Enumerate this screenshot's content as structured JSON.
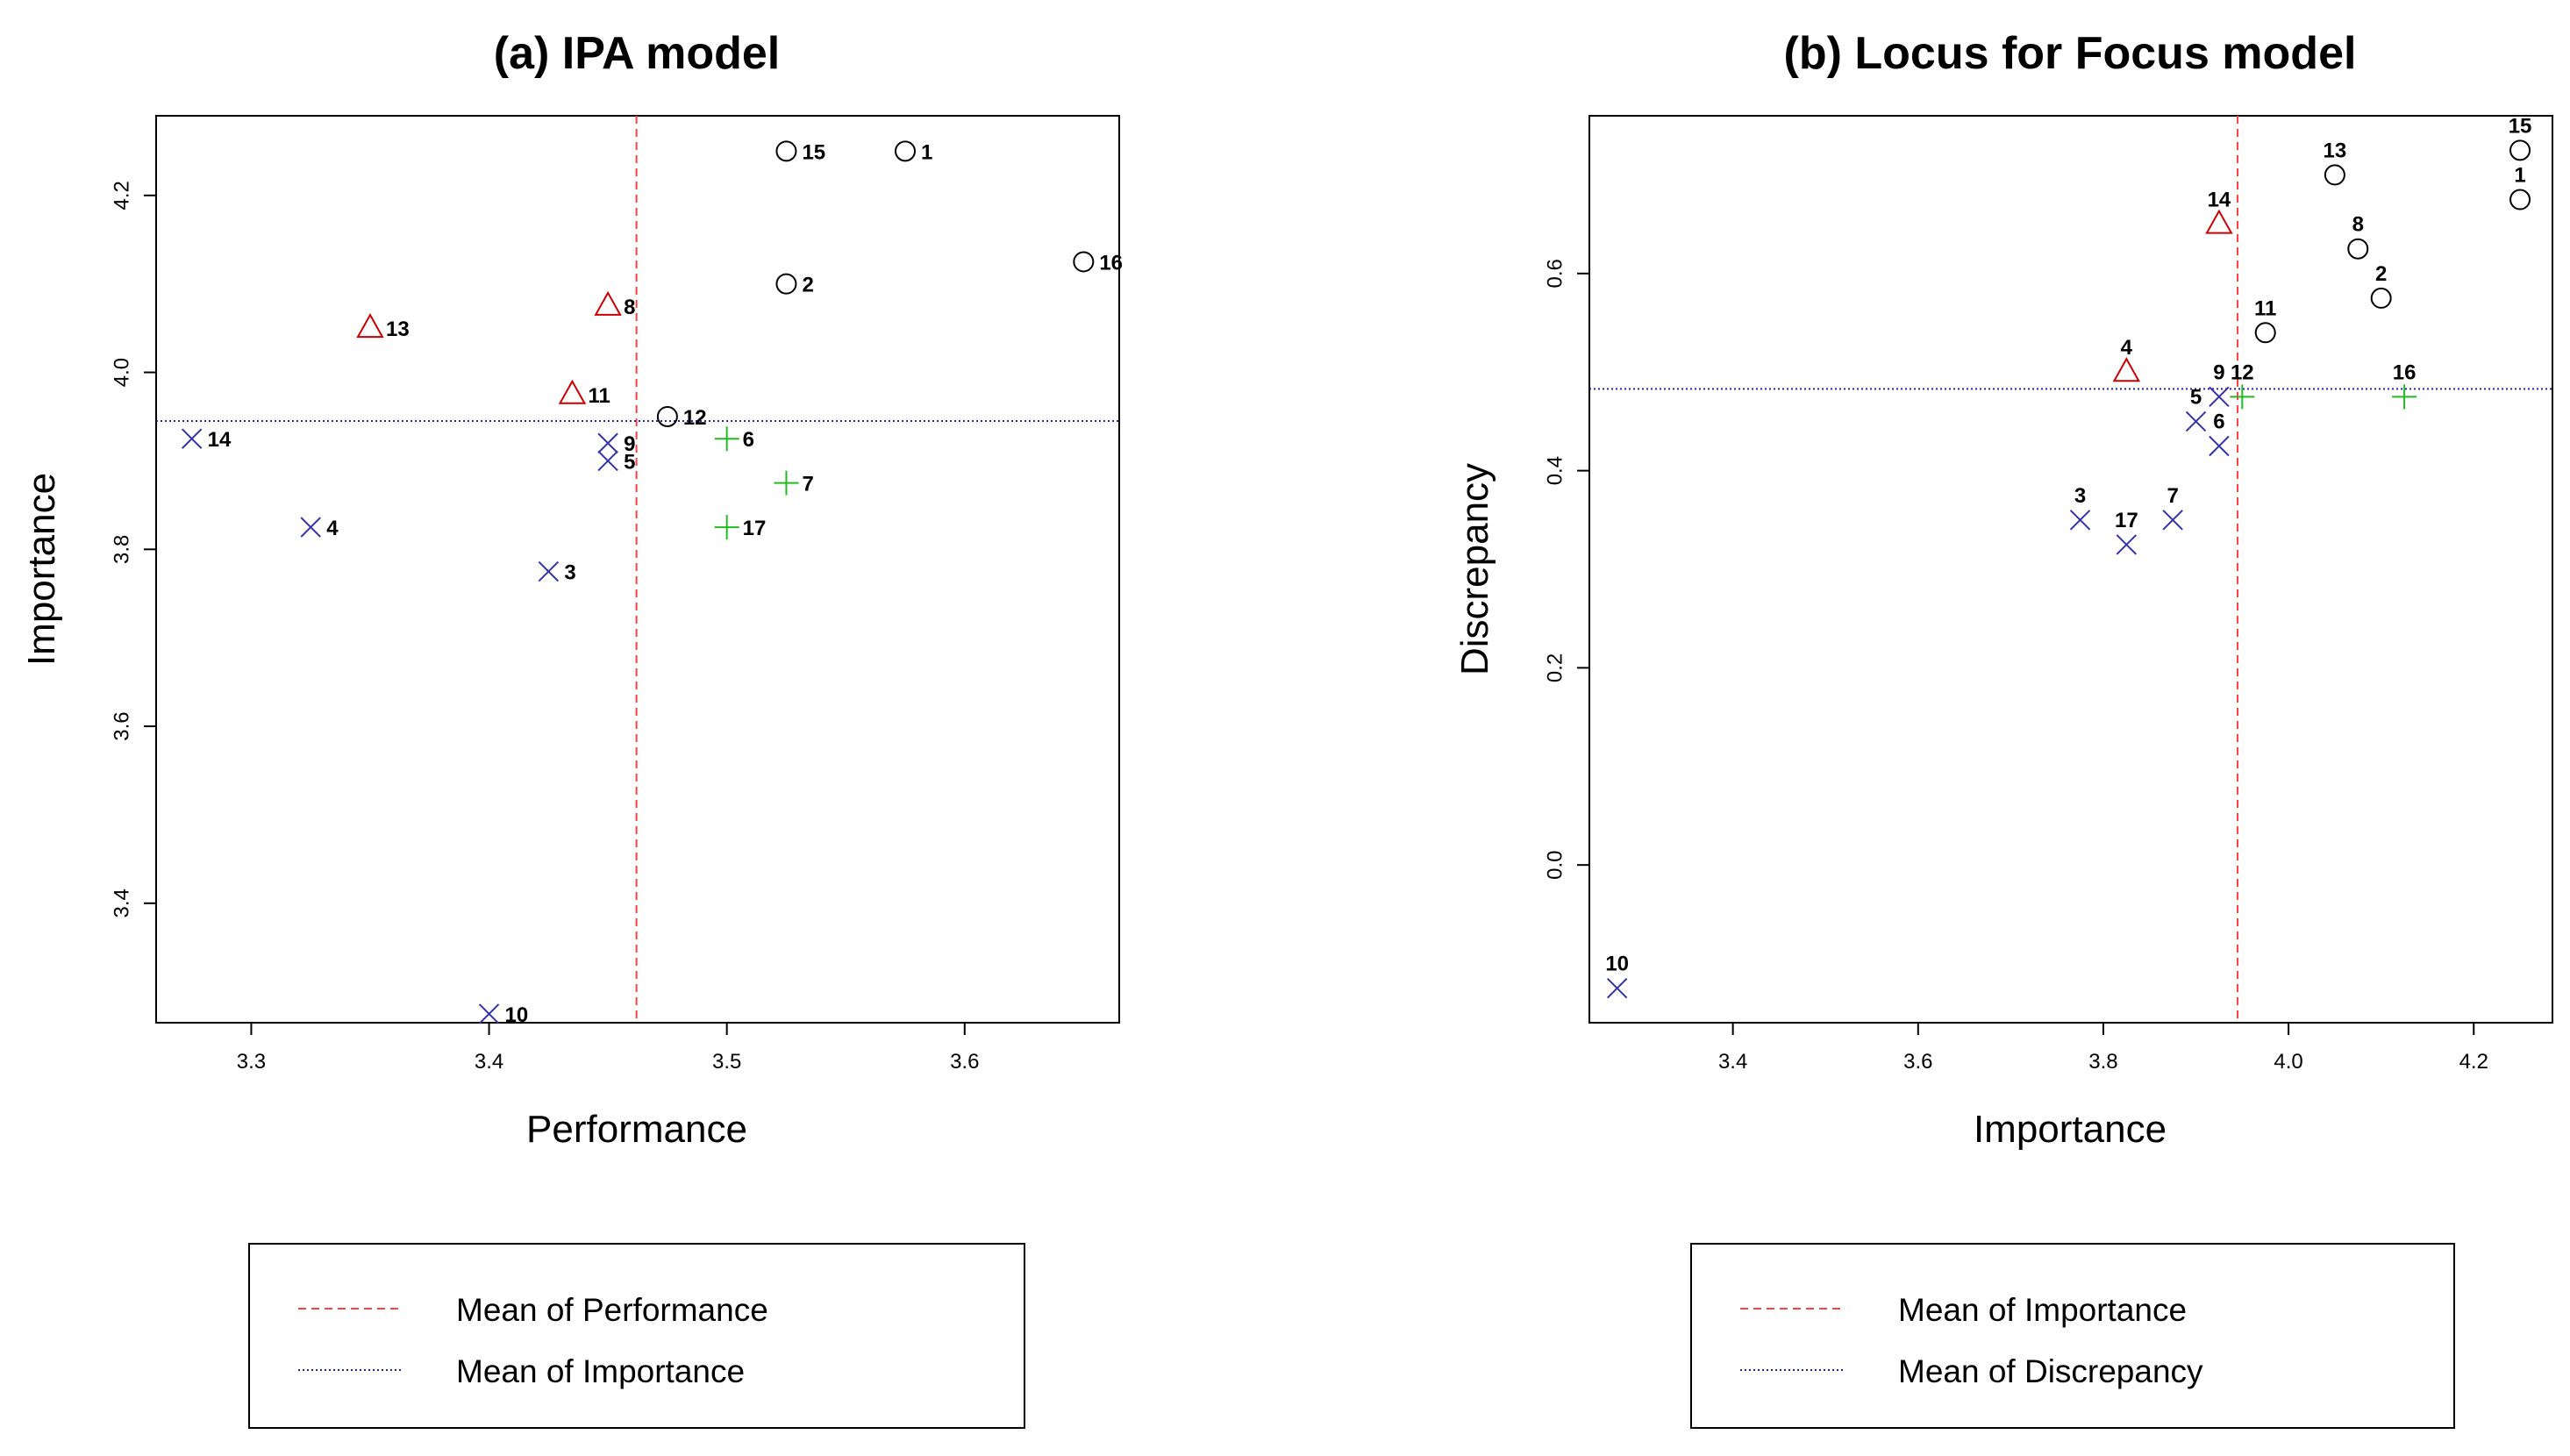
{
  "colors": {
    "high": "#000000",
    "mid": "#cc0000",
    "low": "#3333aa",
    "plus": "#22bb22",
    "mean_x": "#ff4040",
    "mean_y": "#2222aa"
  },
  "chart_data": [
    {
      "type": "scatter",
      "title": "(a) IPA model",
      "xlabel": "Performance",
      "ylabel": "Importance",
      "xlim": [
        3.26,
        3.665
      ],
      "ylim": [
        3.265,
        4.29
      ],
      "xticks": [
        3.3,
        3.4,
        3.5,
        3.6
      ],
      "yticks": [
        3.4,
        3.6,
        3.8,
        4.0,
        4.2
      ],
      "mean_x": 3.462,
      "mean_y": 3.945,
      "legend": [
        "Mean of Performance",
        "Mean of Importance"
      ],
      "points": [
        {
          "label": "1",
          "x": 3.575,
          "y": 4.25,
          "shape": "circle"
        },
        {
          "label": "2",
          "x": 3.525,
          "y": 4.1,
          "shape": "circle"
        },
        {
          "label": "3",
          "x": 3.425,
          "y": 3.775,
          "shape": "x"
        },
        {
          "label": "4",
          "x": 3.325,
          "y": 3.825,
          "shape": "x"
        },
        {
          "label": "5",
          "x": 3.45,
          "y": 3.9,
          "shape": "x"
        },
        {
          "label": "6",
          "x": 3.5,
          "y": 3.925,
          "shape": "plus"
        },
        {
          "label": "7",
          "x": 3.525,
          "y": 3.875,
          "shape": "plus"
        },
        {
          "label": "8",
          "x": 3.45,
          "y": 4.075,
          "shape": "triangle"
        },
        {
          "label": "9",
          "x": 3.45,
          "y": 3.92,
          "shape": "x"
        },
        {
          "label": "10",
          "x": 3.4,
          "y": 3.275,
          "shape": "x"
        },
        {
          "label": "11",
          "x": 3.435,
          "y": 3.975,
          "shape": "triangle"
        },
        {
          "label": "12",
          "x": 3.475,
          "y": 3.95,
          "shape": "circle"
        },
        {
          "label": "13",
          "x": 3.35,
          "y": 4.05,
          "shape": "triangle"
        },
        {
          "label": "14",
          "x": 3.275,
          "y": 3.925,
          "shape": "x"
        },
        {
          "label": "15",
          "x": 3.525,
          "y": 4.25,
          "shape": "circle"
        },
        {
          "label": "16",
          "x": 3.65,
          "y": 4.125,
          "shape": "circle"
        },
        {
          "label": "17",
          "x": 3.5,
          "y": 3.825,
          "shape": "plus"
        }
      ]
    },
    {
      "type": "scatter",
      "title": "(b) Locus for Focus model",
      "xlabel": "Importance",
      "ylabel": "Discrepancy",
      "xlim": [
        3.245,
        4.285
      ],
      "ylim": [
        -0.16,
        0.76
      ],
      "xticks": [
        3.4,
        3.6,
        3.8,
        4.0,
        4.2
      ],
      "yticks": [
        0.0,
        0.2,
        0.4,
        0.6
      ],
      "mean_x": 3.945,
      "mean_y": 0.483,
      "legend": [
        "Mean of Importance",
        "Mean of Discrepancy"
      ],
      "points": [
        {
          "label": "1",
          "x": 4.25,
          "y": 0.675,
          "shape": "circle"
        },
        {
          "label": "2",
          "x": 4.1,
          "y": 0.575,
          "shape": "circle"
        },
        {
          "label": "3",
          "x": 3.775,
          "y": 0.35,
          "shape": "x"
        },
        {
          "label": "4",
          "x": 3.825,
          "y": 0.5,
          "shape": "triangle"
        },
        {
          "label": "5",
          "x": 3.9,
          "y": 0.45,
          "shape": "x"
        },
        {
          "label": "6",
          "x": 3.925,
          "y": 0.425,
          "shape": "x"
        },
        {
          "label": "7",
          "x": 3.875,
          "y": 0.35,
          "shape": "x"
        },
        {
          "label": "8",
          "x": 4.075,
          "y": 0.625,
          "shape": "circle"
        },
        {
          "label": "9",
          "x": 3.925,
          "y": 0.475,
          "shape": "x"
        },
        {
          "label": "10",
          "x": 3.275,
          "y": -0.125,
          "shape": "x"
        },
        {
          "label": "11",
          "x": 3.975,
          "y": 0.54,
          "shape": "circle"
        },
        {
          "label": "12",
          "x": 3.95,
          "y": 0.475,
          "shape": "plus"
        },
        {
          "label": "13",
          "x": 4.05,
          "y": 0.7,
          "shape": "circle"
        },
        {
          "label": "14",
          "x": 3.925,
          "y": 0.65,
          "shape": "triangle"
        },
        {
          "label": "15",
          "x": 4.25,
          "y": 0.725,
          "shape": "circle"
        },
        {
          "label": "16",
          "x": 4.125,
          "y": 0.475,
          "shape": "plus"
        },
        {
          "label": "17",
          "x": 3.825,
          "y": 0.325,
          "shape": "x"
        }
      ]
    }
  ]
}
